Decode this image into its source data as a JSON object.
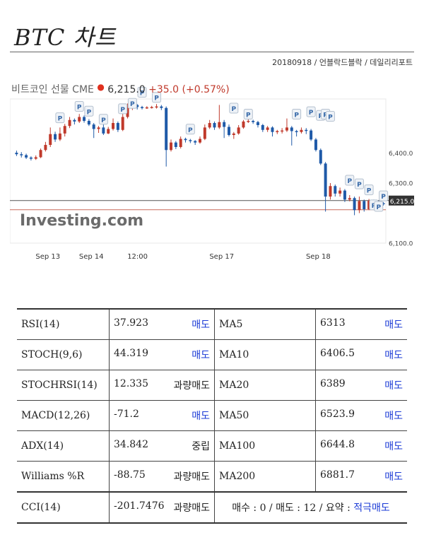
{
  "page": {
    "title": "BTC 차트",
    "meta": "20180918 / 언블락드블락 / 데일리리포트"
  },
  "chart_header": {
    "name": "비트코인 선물 CME",
    "price": "6,215.0",
    "change": "+35.0 (+0.57%)"
  },
  "chart_data": {
    "type": "candlestick",
    "x_ticks": [
      "Sep 13",
      "Sep 14",
      "12:00",
      "Sep 17",
      "Sep 18"
    ],
    "y_ticks": [
      "6,400.0",
      "6,300.0",
      "6,100.0"
    ],
    "ylim": [
      6085,
      6565
    ],
    "last_price_label": "6,215.0",
    "watermark": "Investing.com",
    "marker_label": "P",
    "candles": [
      {
        "o": 6386,
        "c": 6381,
        "h": 6393,
        "l": 6375
      },
      {
        "o": 6381,
        "c": 6378,
        "h": 6388,
        "l": 6370
      },
      {
        "o": 6378,
        "c": 6370,
        "h": 6383,
        "l": 6365
      },
      {
        "o": 6370,
        "c": 6366,
        "h": 6374,
        "l": 6360
      },
      {
        "o": 6366,
        "c": 6371,
        "h": 6377,
        "l": 6362
      },
      {
        "o": 6371,
        "c": 6395,
        "h": 6400,
        "l": 6368
      },
      {
        "o": 6395,
        "c": 6412,
        "h": 6422,
        "l": 6390
      },
      {
        "o": 6412,
        "c": 6448,
        "h": 6470,
        "l": 6405
      },
      {
        "o": 6448,
        "c": 6430,
        "h": 6456,
        "l": 6422
      },
      {
        "o": 6430,
        "c": 6450,
        "h": 6470,
        "l": 6425
      },
      {
        "o": 6450,
        "c": 6475,
        "h": 6482,
        "l": 6440
      },
      {
        "o": 6475,
        "c": 6495,
        "h": 6505,
        "l": 6468
      },
      {
        "o": 6495,
        "c": 6490,
        "h": 6500,
        "l": 6480
      },
      {
        "o": 6490,
        "c": 6505,
        "h": 6515,
        "l": 6485
      },
      {
        "o": 6505,
        "c": 6492,
        "h": 6510,
        "l": 6486
      },
      {
        "o": 6492,
        "c": 6480,
        "h": 6498,
        "l": 6475
      },
      {
        "o": 6480,
        "c": 6465,
        "h": 6485,
        "l": 6435
      },
      {
        "o": 6465,
        "c": 6470,
        "h": 6475,
        "l": 6452
      },
      {
        "o": 6470,
        "c": 6450,
        "h": 6480,
        "l": 6445
      },
      {
        "o": 6450,
        "c": 6465,
        "h": 6472,
        "l": 6448
      },
      {
        "o": 6465,
        "c": 6485,
        "h": 6500,
        "l": 6460
      },
      {
        "o": 6485,
        "c": 6462,
        "h": 6490,
        "l": 6455
      },
      {
        "o": 6462,
        "c": 6505,
        "h": 6520,
        "l": 6458
      },
      {
        "o": 6505,
        "c": 6535,
        "h": 6550,
        "l": 6500
      },
      {
        "o": 6535,
        "c": 6545,
        "h": 6555,
        "l": 6528
      },
      {
        "o": 6545,
        "c": 6538,
        "h": 6548,
        "l": 6530
      },
      {
        "o": 6538,
        "c": 6536,
        "h": 6542,
        "l": 6530
      },
      {
        "o": 6536,
        "c": 6537,
        "h": 6541,
        "l": 6532
      },
      {
        "o": 6537,
        "c": 6538,
        "h": 6542,
        "l": 6533
      },
      {
        "o": 6538,
        "c": 6540,
        "h": 6548,
        "l": 6533
      },
      {
        "o": 6540,
        "c": 6535,
        "h": 6545,
        "l": 6528
      },
      {
        "o": 6535,
        "c": 6395,
        "h": 6540,
        "l": 6340
      },
      {
        "o": 6395,
        "c": 6420,
        "h": 6430,
        "l": 6390
      },
      {
        "o": 6420,
        "c": 6405,
        "h": 6425,
        "l": 6398
      },
      {
        "o": 6405,
        "c": 6432,
        "h": 6440,
        "l": 6400
      },
      {
        "o": 6432,
        "c": 6428,
        "h": 6436,
        "l": 6420
      },
      {
        "o": 6428,
        "c": 6425,
        "h": 6432,
        "l": 6418
      },
      {
        "o": 6425,
        "c": 6420,
        "h": 6428,
        "l": 6412
      },
      {
        "o": 6420,
        "c": 6432,
        "h": 6440,
        "l": 6416
      },
      {
        "o": 6432,
        "c": 6470,
        "h": 6480,
        "l": 6428
      },
      {
        "o": 6470,
        "c": 6485,
        "h": 6495,
        "l": 6465
      },
      {
        "o": 6485,
        "c": 6470,
        "h": 6490,
        "l": 6462
      },
      {
        "o": 6470,
        "c": 6488,
        "h": 6545,
        "l": 6465
      },
      {
        "o": 6488,
        "c": 6472,
        "h": 6495,
        "l": 6435
      },
      {
        "o": 6472,
        "c": 6445,
        "h": 6480,
        "l": 6440
      },
      {
        "o": 6445,
        "c": 6450,
        "h": 6455,
        "l": 6432
      },
      {
        "o": 6450,
        "c": 6470,
        "h": 6478,
        "l": 6446
      },
      {
        "o": 6470,
        "c": 6490,
        "h": 6495,
        "l": 6466
      },
      {
        "o": 6490,
        "c": 6492,
        "h": 6498,
        "l": 6485
      },
      {
        "o": 6492,
        "c": 6488,
        "h": 6496,
        "l": 6482
      },
      {
        "o": 6488,
        "c": 6478,
        "h": 6492,
        "l": 6470
      },
      {
        "o": 6478,
        "c": 6462,
        "h": 6482,
        "l": 6455
      },
      {
        "o": 6462,
        "c": 6470,
        "h": 6475,
        "l": 6455
      },
      {
        "o": 6470,
        "c": 6455,
        "h": 6474,
        "l": 6440
      },
      {
        "o": 6455,
        "c": 6458,
        "h": 6462,
        "l": 6448
      },
      {
        "o": 6458,
        "c": 6460,
        "h": 6468,
        "l": 6450
      },
      {
        "o": 6460,
        "c": 6470,
        "h": 6500,
        "l": 6455
      },
      {
        "o": 6470,
        "c": 6458,
        "h": 6475,
        "l": 6410
      },
      {
        "o": 6458,
        "c": 6455,
        "h": 6462,
        "l": 6440
      },
      {
        "o": 6455,
        "c": 6462,
        "h": 6470,
        "l": 6450
      },
      {
        "o": 6462,
        "c": 6460,
        "h": 6468,
        "l": 6448
      },
      {
        "o": 6460,
        "c": 6430,
        "h": 6465,
        "l": 6425
      },
      {
        "o": 6430,
        "c": 6395,
        "h": 6435,
        "l": 6390
      },
      {
        "o": 6395,
        "c": 6350,
        "h": 6400,
        "l": 6345
      },
      {
        "o": 6350,
        "c": 6240,
        "h": 6355,
        "l": 6190
      },
      {
        "o": 6240,
        "c": 6275,
        "h": 6285,
        "l": 6230
      },
      {
        "o": 6275,
        "c": 6250,
        "h": 6280,
        "l": 6240
      },
      {
        "o": 6250,
        "c": 6260,
        "h": 6270,
        "l": 6240
      },
      {
        "o": 6260,
        "c": 6230,
        "h": 6265,
        "l": 6222
      },
      {
        "o": 6230,
        "c": 6235,
        "h": 6245,
        "l": 6224
      },
      {
        "o": 6235,
        "c": 6195,
        "h": 6240,
        "l": 6178
      },
      {
        "o": 6195,
        "c": 6225,
        "h": 6240,
        "l": 6185
      },
      {
        "o": 6225,
        "c": 6198,
        "h": 6230,
        "l": 6190
      },
      {
        "o": 6198,
        "c": 6226,
        "h": 6232,
        "l": 6195
      },
      {
        "o": 6226,
        "c": 6222,
        "h": 6230,
        "l": 6214
      },
      {
        "o": 6222,
        "c": 6218,
        "h": 6226,
        "l": 6212
      },
      {
        "o": 6218,
        "c": 6215,
        "h": 6222,
        "l": 6210
      }
    ],
    "markers": [
      {
        "i": 9,
        "v": 6500
      },
      {
        "i": 13,
        "v": 6538
      },
      {
        "i": 15,
        "v": 6522
      },
      {
        "i": 18,
        "v": 6495
      },
      {
        "i": 22,
        "v": 6530
      },
      {
        "i": 24,
        "v": 6548
      },
      {
        "i": 26,
        "v": 6585
      },
      {
        "i": 29,
        "v": 6568
      },
      {
        "i": 36,
        "v": 6462
      },
      {
        "i": 45,
        "v": 6532
      },
      {
        "i": 48,
        "v": 6512
      },
      {
        "i": 58,
        "v": 6512
      },
      {
        "i": 61,
        "v": 6520
      },
      {
        "i": 63,
        "v": 6508
      },
      {
        "i": 64,
        "v": 6512
      },
      {
        "i": 65,
        "v": 6505
      },
      {
        "i": 69,
        "v": 6292
      },
      {
        "i": 71,
        "v": 6280
      },
      {
        "i": 73,
        "v": 6260
      },
      {
        "i": 74,
        "v": 6210
      },
      {
        "i": 75,
        "v": 6205
      },
      {
        "i": 76,
        "v": 6240
      }
    ]
  },
  "indicators": [
    {
      "name": "RSI(14)",
      "value": "37.923",
      "signal": "매도",
      "signal_color": "#1a3ad6",
      "ma": "MA5",
      "ma_value": "6313",
      "ma_signal": "매도"
    },
    {
      "name": "STOCH(9,6)",
      "value": "44.319",
      "signal": "매도",
      "signal_color": "#1a3ad6",
      "ma": "MA10",
      "ma_value": "6406.5",
      "ma_signal": "매도"
    },
    {
      "name": "STOCHRSI(14)",
      "value": "12.335",
      "signal": "과량매도",
      "signal_color": "#222222",
      "ma": "MA20",
      "ma_value": "6389",
      "ma_signal": "매도"
    },
    {
      "name": "MACD(12,26)",
      "value": "-71.2",
      "signal": "매도",
      "signal_color": "#1a3ad6",
      "ma": "MA50",
      "ma_value": "6523.9",
      "ma_signal": "매도"
    },
    {
      "name": "ADX(14)",
      "value": "34.842",
      "signal": "중립",
      "signal_color": "#222222",
      "ma": "MA100",
      "ma_value": "6644.8",
      "ma_signal": "매도"
    },
    {
      "name": "Williams %R",
      "value": "-88.75",
      "signal": "과량매도",
      "signal_color": "#222222",
      "ma": "MA200",
      "ma_value": "6881.7",
      "ma_signal": "매도"
    }
  ],
  "last_row": {
    "name": "CCI(14)",
    "value": "-201.7476",
    "signal": "과량매도",
    "summary_prefix": "매수 : 0 / 매도 : 12 / 요약 : ",
    "summary_strong": "적극매도"
  }
}
